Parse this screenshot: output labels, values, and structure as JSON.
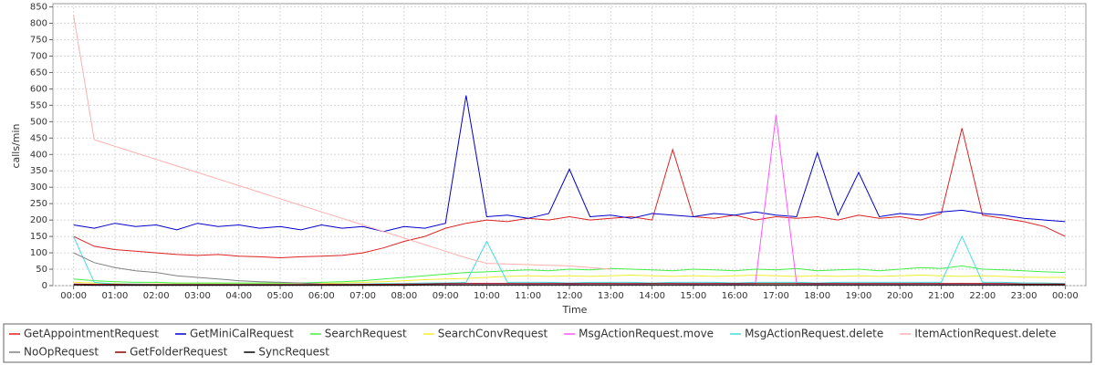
{
  "chart_data": {
    "type": "line",
    "xlabel": "Time",
    "ylabel": "calls/min",
    "grid": true,
    "legend": "bottom",
    "x": [
      0,
      0.5,
      1,
      1.5,
      2,
      2.5,
      3,
      3.5,
      4,
      4.5,
      5,
      5.5,
      6,
      6.5,
      7,
      7.5,
      8,
      8.5,
      9,
      9.5,
      10,
      10.5,
      11,
      11.5,
      12,
      12.5,
      13,
      13.5,
      14,
      14.5,
      15,
      15.5,
      16,
      16.5,
      17,
      17.5,
      18,
      18.5,
      19,
      19.5,
      20,
      20.5,
      21,
      21.5,
      22,
      22.5,
      23,
      23.5,
      24
    ],
    "xlim": [
      -0.5,
      24.5
    ],
    "xticks": [
      {
        "value": 0,
        "label": "00:00"
      },
      {
        "value": 1,
        "label": "01:00"
      },
      {
        "value": 2,
        "label": "02:00"
      },
      {
        "value": 3,
        "label": "03:00"
      },
      {
        "value": 4,
        "label": "04:00"
      },
      {
        "value": 5,
        "label": "05:00"
      },
      {
        "value": 6,
        "label": "06:00"
      },
      {
        "value": 7,
        "label": "07:00"
      },
      {
        "value": 8,
        "label": "08:00"
      },
      {
        "value": 9,
        "label": "09:00"
      },
      {
        "value": 10,
        "label": "10:00"
      },
      {
        "value": 11,
        "label": "11:00"
      },
      {
        "value": 12,
        "label": "12:00"
      },
      {
        "value": 13,
        "label": "13:00"
      },
      {
        "value": 14,
        "label": "14:00"
      },
      {
        "value": 15,
        "label": "15:00"
      },
      {
        "value": 16,
        "label": "16:00"
      },
      {
        "value": 17,
        "label": "17:00"
      },
      {
        "value": 18,
        "label": "18:00"
      },
      {
        "value": 19,
        "label": "19:00"
      },
      {
        "value": 20,
        "label": "20:00"
      },
      {
        "value": 21,
        "label": "21:00"
      },
      {
        "value": 22,
        "label": "22:00"
      },
      {
        "value": 23,
        "label": "23:00"
      },
      {
        "value": 24,
        "label": "00:00"
      }
    ],
    "ylim": [
      0,
      860
    ],
    "yticks": [
      0,
      50,
      100,
      150,
      200,
      250,
      300,
      350,
      400,
      450,
      500,
      550,
      600,
      650,
      700,
      750,
      800,
      850
    ],
    "series": [
      {
        "name": "GetAppointmentRequest",
        "color": "#dd2222",
        "values": [
          150,
          120,
          110,
          105,
          100,
          95,
          92,
          95,
          90,
          88,
          85,
          88,
          90,
          92,
          100,
          115,
          135,
          150,
          175,
          190,
          200,
          195,
          205,
          200,
          210,
          200,
          205,
          210,
          200,
          415,
          210,
          205,
          215,
          200,
          210,
          205,
          210,
          200,
          215,
          205,
          210,
          200,
          220,
          480,
          215,
          205,
          195,
          180,
          150
        ]
      },
      {
        "name": "GetMiniCalRequest",
        "color": "#0000cc",
        "values": [
          185,
          175,
          190,
          180,
          185,
          170,
          190,
          180,
          185,
          175,
          180,
          170,
          185,
          175,
          180,
          165,
          180,
          175,
          190,
          580,
          210,
          215,
          205,
          220,
          355,
          210,
          215,
          205,
          220,
          215,
          210,
          220,
          215,
          225,
          215,
          210,
          405,
          215,
          345,
          210,
          220,
          215,
          225,
          230,
          220,
          215,
          205,
          200,
          195
        ]
      },
      {
        "name": "SearchRequest",
        "color": "#44ee44",
        "values": [
          20,
          15,
          12,
          10,
          10,
          8,
          8,
          8,
          8,
          8,
          8,
          8,
          10,
          12,
          15,
          20,
          25,
          30,
          35,
          40,
          42,
          45,
          48,
          45,
          50,
          48,
          52,
          50,
          48,
          45,
          50,
          48,
          45,
          50,
          48,
          52,
          45,
          48,
          50,
          45,
          50,
          55,
          52,
          60,
          50,
          48,
          45,
          42,
          40
        ]
      },
      {
        "name": "SearchConvRequest",
        "color": "#eeee33",
        "values": [
          10,
          8,
          6,
          5,
          5,
          5,
          5,
          5,
          5,
          5,
          5,
          5,
          6,
          8,
          10,
          12,
          15,
          18,
          20,
          22,
          25,
          28,
          30,
          28,
          30,
          28,
          30,
          32,
          30,
          28,
          30,
          28,
          30,
          32,
          30,
          28,
          30,
          28,
          30,
          28,
          30,
          32,
          30,
          28,
          30,
          28,
          26,
          25,
          25
        ]
      },
      {
        "name": "MsgActionRequest.move",
        "color": "#ff55ff",
        "values": [
          3,
          2,
          2,
          2,
          2,
          2,
          2,
          2,
          2,
          2,
          2,
          2,
          2,
          3,
          3,
          4,
          5,
          5,
          5,
          6,
          6,
          6,
          5,
          6,
          5,
          6,
          6,
          5,
          6,
          6,
          5,
          6,
          5,
          6,
          520,
          6,
          5,
          6,
          5,
          6,
          5,
          6,
          5,
          6,
          5,
          5,
          4,
          4,
          3
        ]
      },
      {
        "name": "MsgActionRequest.delete",
        "color": "#44dddd",
        "values": [
          150,
          10,
          5,
          5,
          4,
          4,
          4,
          4,
          4,
          4,
          4,
          4,
          4,
          5,
          5,
          6,
          6,
          8,
          8,
          10,
          135,
          10,
          10,
          10,
          8,
          10,
          10,
          10,
          8,
          10,
          10,
          10,
          8,
          10,
          10,
          10,
          8,
          10,
          10,
          10,
          10,
          10,
          10,
          150,
          10,
          10,
          8,
          8,
          6
        ]
      },
      {
        "name": "ItemActionRequest.delete",
        "color": "#ffafaf",
        "values": [
          825,
          445,
          425,
          405,
          385,
          365,
          345,
          325,
          305,
          285,
          265,
          245,
          225,
          205,
          185,
          165,
          145,
          125,
          105,
          85,
          68,
          66,
          64,
          62,
          60,
          55,
          50,
          null,
          null,
          null,
          null,
          null,
          null,
          null,
          null,
          null,
          null,
          null,
          null,
          null,
          null,
          null,
          null,
          null,
          null,
          null,
          null,
          null,
          null
        ]
      },
      {
        "name": "NoOpRequest",
        "color": "#808080",
        "values": [
          100,
          70,
          55,
          45,
          40,
          30,
          25,
          20,
          15,
          12,
          10,
          8,
          5,
          4,
          3,
          2,
          2,
          2,
          2,
          2,
          2,
          2,
          2,
          2,
          2,
          2,
          2,
          2,
          2,
          2,
          2,
          2,
          2,
          2,
          2,
          2,
          2,
          2,
          2,
          2,
          2,
          2,
          2,
          2,
          2,
          2,
          2,
          2,
          2
        ]
      },
      {
        "name": "GetFolderRequest",
        "color": "#8b0000",
        "values": [
          5,
          4,
          4,
          3,
          3,
          3,
          3,
          3,
          3,
          3,
          3,
          3,
          3,
          3,
          4,
          4,
          5,
          5,
          6,
          6,
          6,
          6,
          6,
          6,
          6,
          6,
          6,
          6,
          6,
          6,
          6,
          6,
          6,
          6,
          6,
          6,
          6,
          6,
          6,
          6,
          6,
          6,
          6,
          6,
          6,
          6,
          5,
          5,
          5
        ]
      },
      {
        "name": "SyncRequest",
        "color": "#000000",
        "values": [
          2,
          1,
          1,
          1,
          1,
          1,
          1,
          1,
          1,
          1,
          1,
          1,
          1,
          1,
          1,
          1,
          1,
          2,
          2,
          2,
          2,
          2,
          2,
          2,
          2,
          2,
          2,
          2,
          2,
          2,
          2,
          2,
          2,
          2,
          2,
          2,
          2,
          2,
          2,
          2,
          2,
          2,
          2,
          2,
          2,
          2,
          2,
          2,
          2
        ]
      }
    ]
  }
}
